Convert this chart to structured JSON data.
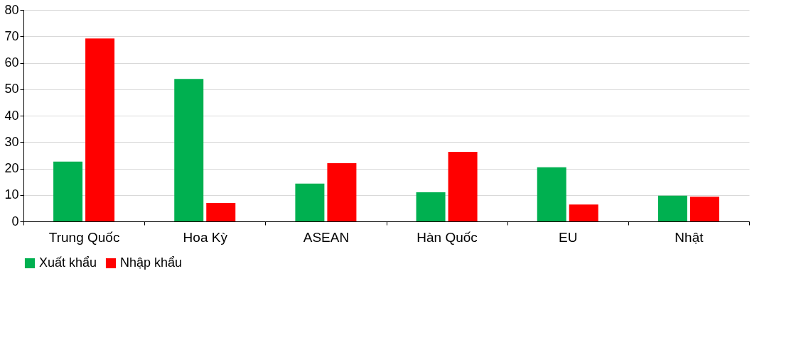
{
  "chart_data": {
    "type": "bar",
    "categories": [
      "Trung Quốc",
      "Hoa Kỳ",
      "ASEAN",
      "Hàn Quốc",
      "EU",
      "Nhật"
    ],
    "series": [
      {
        "name": "Xuất khẩu",
        "color": "#00b050",
        "values": [
          22.6,
          53.9,
          14.3,
          11.0,
          20.5,
          9.7
        ]
      },
      {
        "name": "Nhập khẩu",
        "color": "#ff0000",
        "values": [
          69.2,
          7.0,
          22.0,
          26.3,
          6.4,
          9.3
        ]
      }
    ],
    "ylim": [
      0,
      80
    ],
    "yticks": [
      0,
      10,
      20,
      30,
      40,
      50,
      60,
      70,
      80
    ],
    "grid": "y",
    "legend": "bottom"
  }
}
